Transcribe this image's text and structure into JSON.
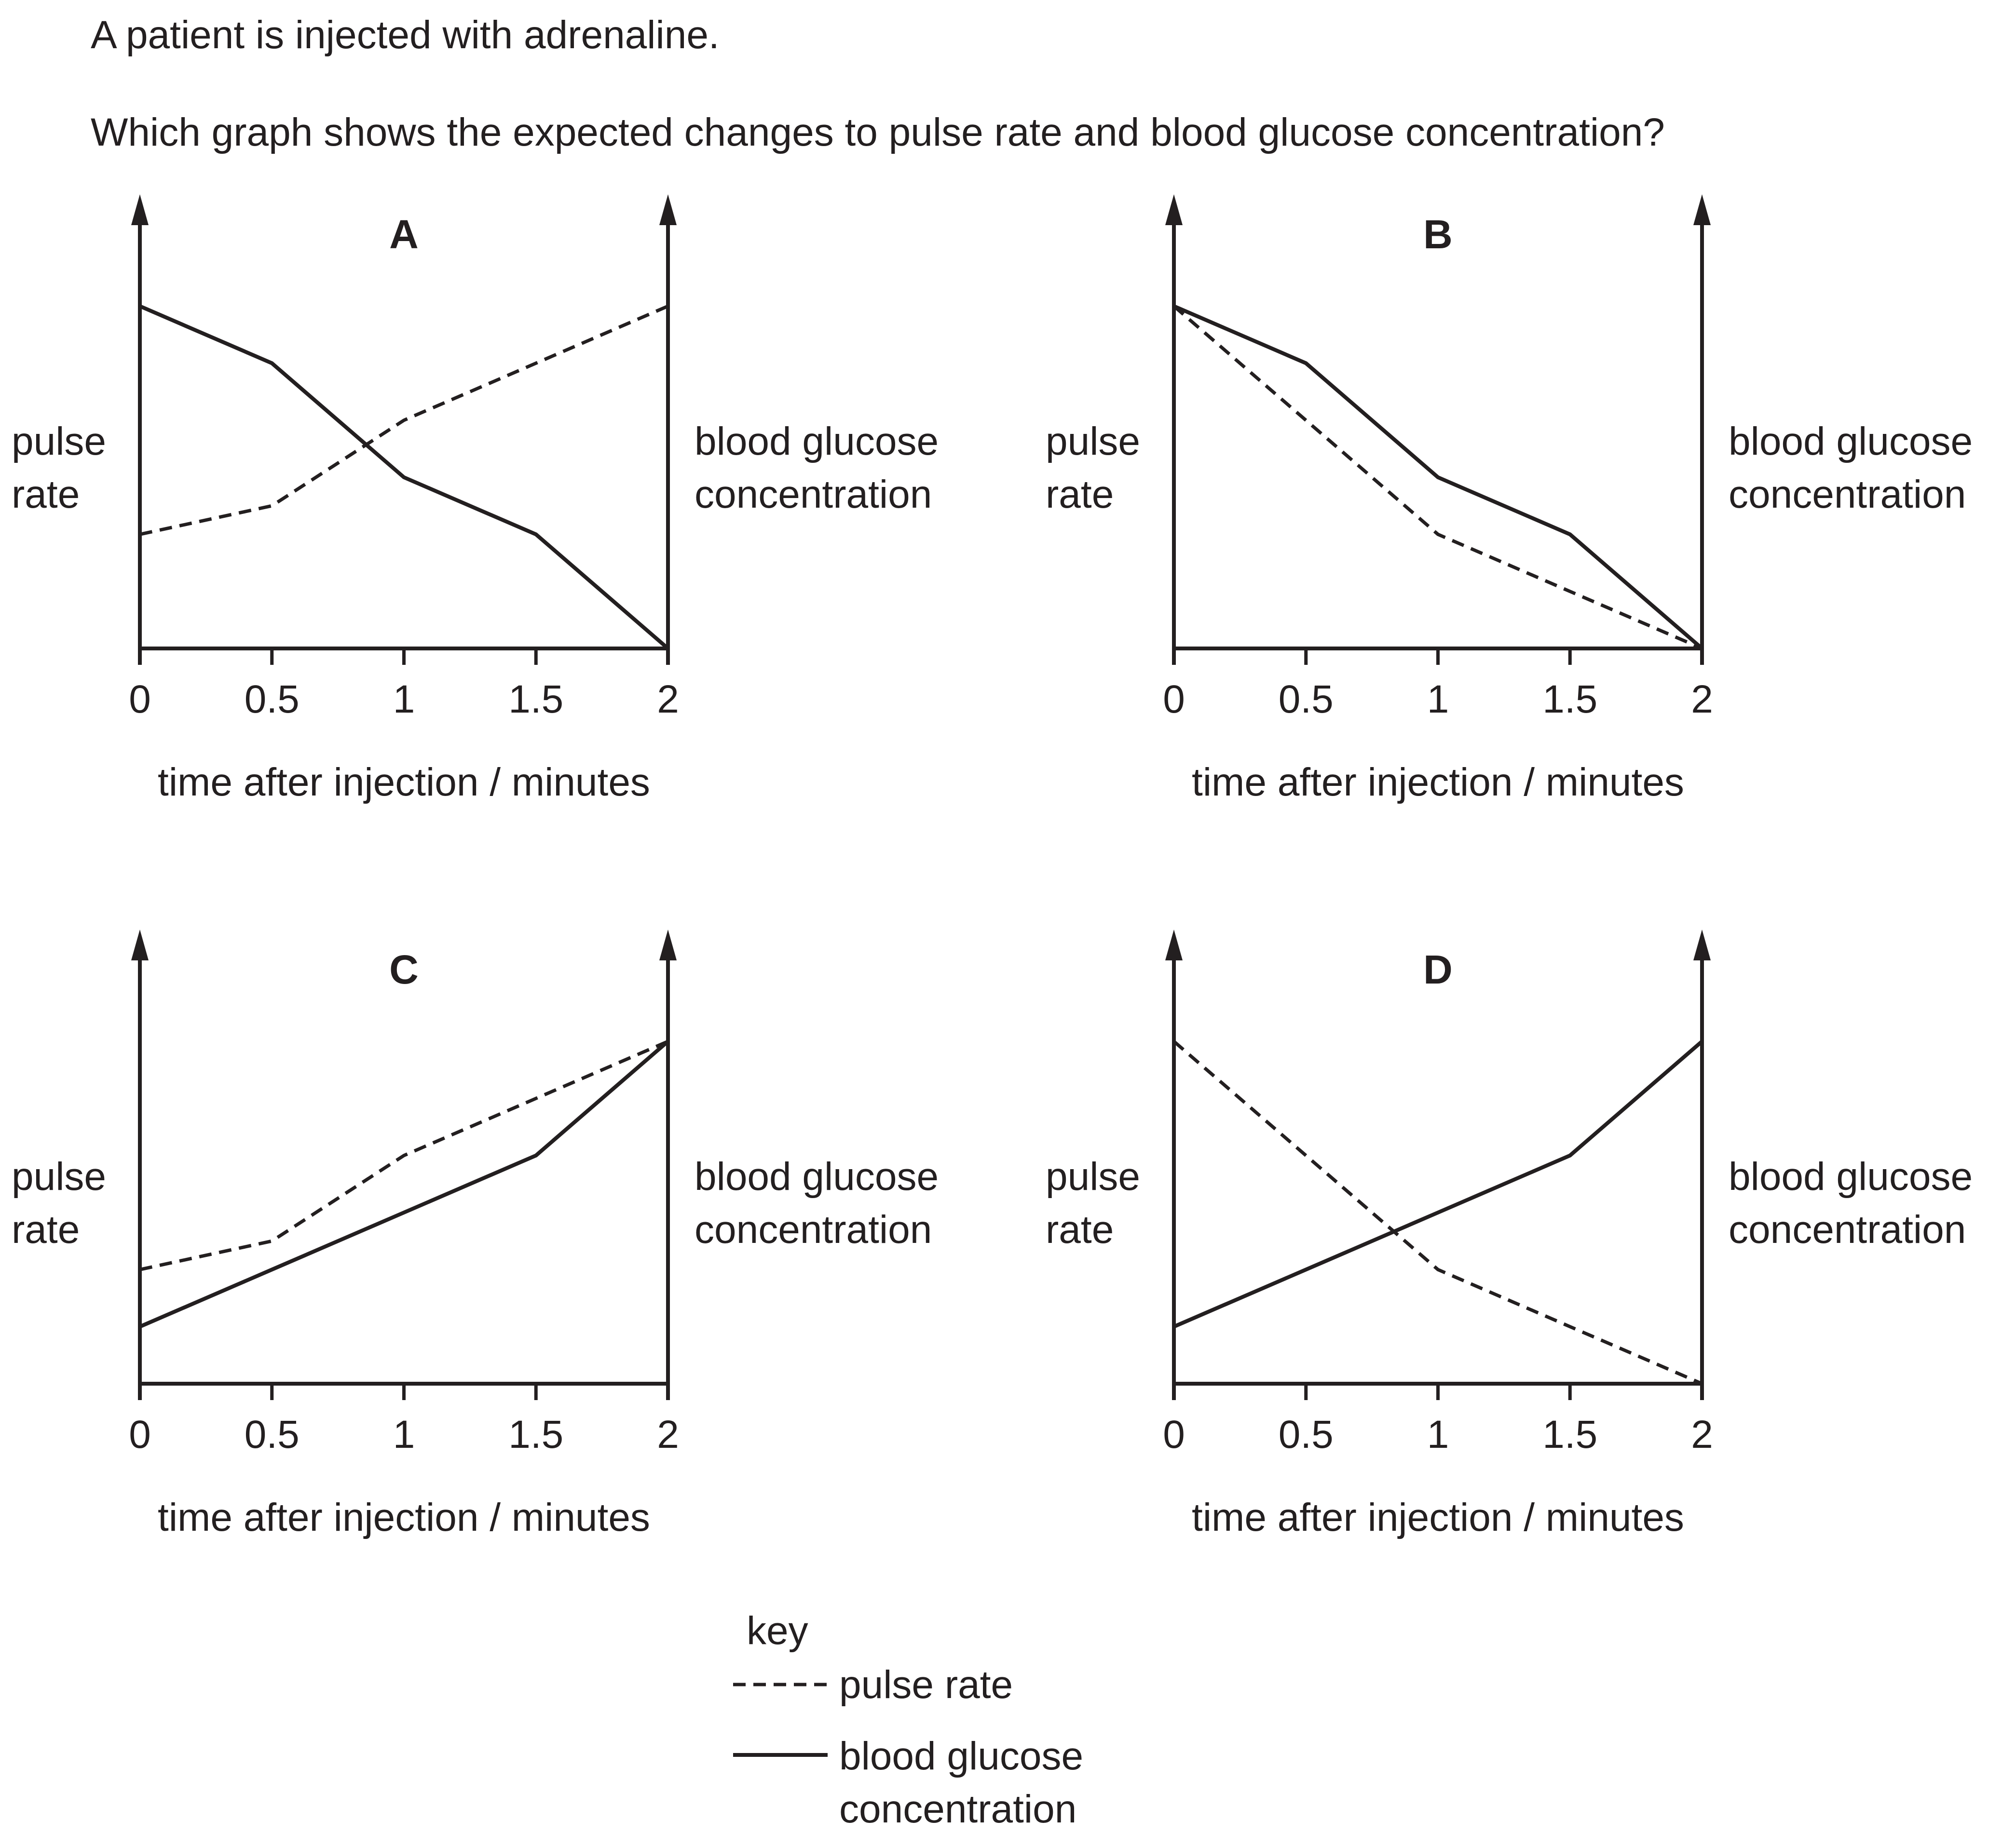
{
  "question": {
    "stem": "A patient is injected with adrenaline.",
    "prompt": "Which graph shows the expected changes to pulse rate and blood glucose concentration?"
  },
  "axis_labels": {
    "left": [
      "pulse",
      "rate"
    ],
    "right": [
      "blood glucose",
      "concentration"
    ],
    "x": "time after injection / minutes"
  },
  "key": {
    "title": "key",
    "pulse": "pulse rate",
    "glucose": [
      "blood glucose",
      "concentration"
    ]
  },
  "colors": {
    "ink": "#231f20",
    "background": "#ffffff"
  },
  "chart_data": [
    {
      "type": "line",
      "title": "A",
      "x": [
        0,
        0.5,
        1,
        1.5,
        2
      ],
      "xticks": [
        "0",
        "0.5",
        "1",
        "1.5",
        "2"
      ],
      "xlabel": "time after injection / minutes",
      "ylabel": "pulse rate",
      "y2label": "blood glucose concentration",
      "ylim": [
        0,
        6
      ],
      "series": [
        {
          "name": "pulse rate",
          "style": "dashed",
          "values": [
            2,
            2.5,
            4,
            5,
            6
          ]
        },
        {
          "name": "blood glucose concentration",
          "style": "solid",
          "values": [
            6,
            5,
            3,
            2,
            0
          ]
        }
      ]
    },
    {
      "type": "line",
      "title": "B",
      "x": [
        0,
        0.5,
        1,
        1.5,
        2
      ],
      "xticks": [
        "0",
        "0.5",
        "1",
        "1.5",
        "2"
      ],
      "xlabel": "time after injection / minutes",
      "ylabel": "pulse rate",
      "y2label": "blood glucose concentration",
      "ylim": [
        0,
        6
      ],
      "series": [
        {
          "name": "pulse rate",
          "style": "dashed",
          "values": [
            6,
            4,
            2,
            1,
            0
          ]
        },
        {
          "name": "blood glucose concentration",
          "style": "solid",
          "values": [
            6,
            5,
            3,
            2,
            0
          ]
        }
      ]
    },
    {
      "type": "line",
      "title": "C",
      "x": [
        0,
        0.5,
        1,
        1.5,
        2
      ],
      "xticks": [
        "0",
        "0.5",
        "1",
        "1.5",
        "2"
      ],
      "xlabel": "time after injection / minutes",
      "ylabel": "pulse rate",
      "y2label": "blood glucose concentration",
      "ylim": [
        0,
        6
      ],
      "series": [
        {
          "name": "pulse rate",
          "style": "dashed",
          "values": [
            2,
            2.5,
            4,
            5,
            6
          ]
        },
        {
          "name": "blood glucose concentration",
          "style": "solid",
          "values": [
            1,
            2,
            3,
            4,
            6
          ]
        }
      ]
    },
    {
      "type": "line",
      "title": "D",
      "x": [
        0,
        0.5,
        1,
        1.5,
        2
      ],
      "xticks": [
        "0",
        "0.5",
        "1",
        "1.5",
        "2"
      ],
      "xlabel": "time after injection / minutes",
      "ylabel": "pulse rate",
      "y2label": "blood glucose concentration",
      "ylim": [
        0,
        6
      ],
      "series": [
        {
          "name": "pulse rate",
          "style": "dashed",
          "values": [
            6,
            4,
            2,
            1,
            0
          ]
        },
        {
          "name": "blood glucose concentration",
          "style": "solid",
          "values": [
            1,
            2,
            3,
            4,
            6
          ]
        }
      ]
    }
  ]
}
